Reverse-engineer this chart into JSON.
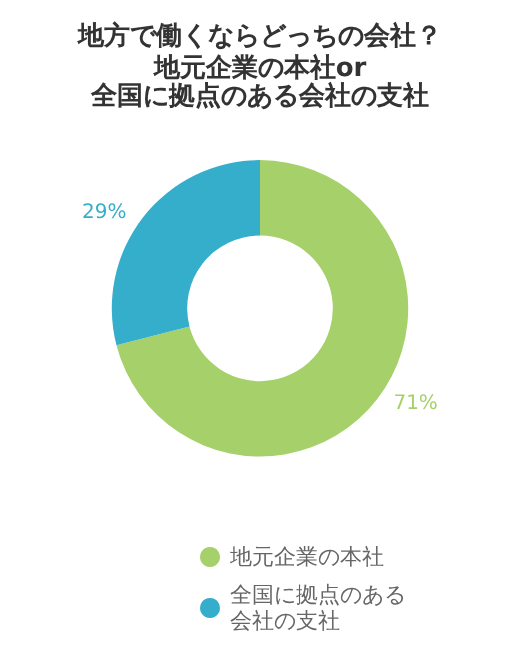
{
  "chart_data": {
    "type": "donut",
    "title": "地方で働くならどっちの会社？",
    "subtitle": "地元企業の本社or",
    "annotations": [
      "全国に拠点のある会社の支社"
    ],
    "categories": [
      "地元企業の本社",
      "全国に拠点のある会社の支社"
    ],
    "values": [
      71,
      29
    ],
    "value_labels": [
      "71%",
      "29%"
    ],
    "colors": [
      "#a6d06a",
      "#35aecb"
    ],
    "legend": "bottom"
  }
}
